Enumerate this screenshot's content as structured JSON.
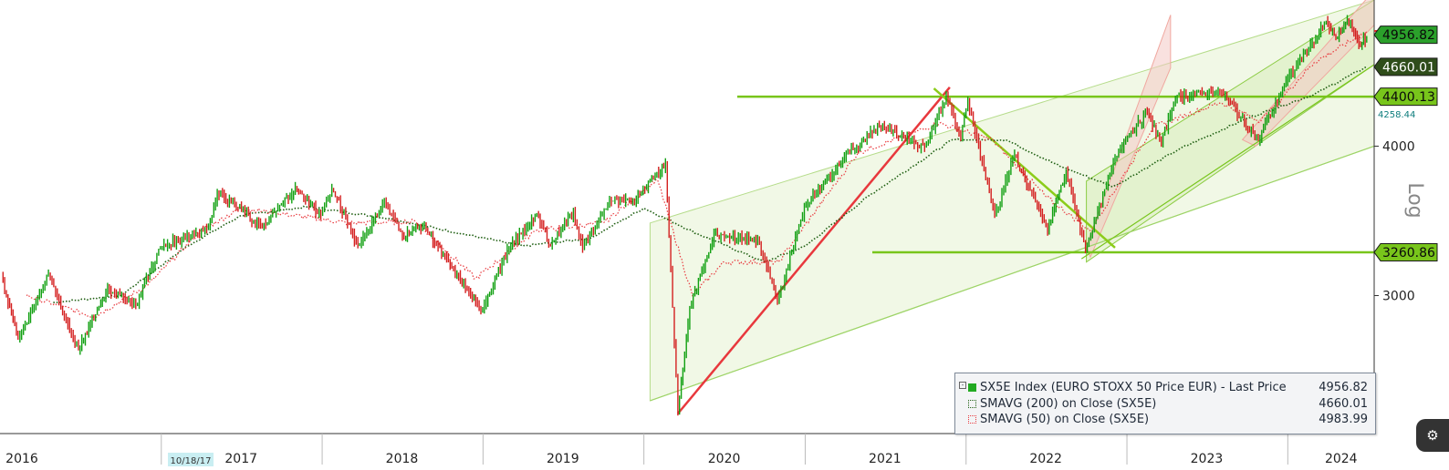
{
  "chart_data": {
    "type": "line",
    "title": "SX5E Index (EURO STOXX 50 Price EUR)",
    "y_scale": "log",
    "y_axis_label": "Log",
    "ylim": [
      2300,
      5300
    ],
    "x_range": [
      "2016-01-01",
      "2024-07-15"
    ],
    "x_tick_labels": [
      "2016",
      "2017",
      "2018",
      "2019",
      "2020",
      "2021",
      "2022",
      "2023",
      "2024"
    ],
    "y_tick_labels": [
      "3000",
      "4000"
    ],
    "date_marker": "10/18/17",
    "series": [
      {
        "name": "SX5E Index (EURO STOXX 50 Price EUR) - Last Price",
        "color": "#00a000",
        "last_value": "4956.82",
        "points": [
          [
            "2016-01-04",
            3120
          ],
          [
            "2016-02-11",
            2760
          ],
          [
            "2016-04-20",
            3120
          ],
          [
            "2016-06-27",
            2700
          ],
          [
            "2016-09-01",
            3040
          ],
          [
            "2016-11-04",
            2950
          ],
          [
            "2016-12-30",
            3290
          ],
          [
            "2017-04-18",
            3420
          ],
          [
            "2017-05-08",
            3660
          ],
          [
            "2017-08-18",
            3420
          ],
          [
            "2017-11-01",
            3690
          ],
          [
            "2017-12-29",
            3500
          ],
          [
            "2018-01-23",
            3690
          ],
          [
            "2018-03-23",
            3300
          ],
          [
            "2018-05-22",
            3590
          ],
          [
            "2018-07-02",
            3370
          ],
          [
            "2018-08-17",
            3440
          ],
          [
            "2018-10-26",
            3150
          ],
          [
            "2018-12-27",
            2910
          ],
          [
            "2019-03-01",
            3290
          ],
          [
            "2019-05-03",
            3500
          ],
          [
            "2019-06-03",
            3310
          ],
          [
            "2019-07-25",
            3530
          ],
          [
            "2019-08-15",
            3280
          ],
          [
            "2019-10-15",
            3600
          ],
          [
            "2019-12-03",
            3590
          ],
          [
            "2020-02-19",
            3865
          ],
          [
            "2020-03-18",
            2390
          ],
          [
            "2020-04-14",
            2930
          ],
          [
            "2020-06-08",
            3380
          ],
          [
            "2020-09-15",
            3340
          ],
          [
            "2020-10-30",
            2960
          ],
          [
            "2020-12-30",
            3560
          ],
          [
            "2021-03-31",
            3920
          ],
          [
            "2021-06-18",
            4160
          ],
          [
            "2021-09-29",
            3990
          ],
          [
            "2021-11-17",
            4400
          ],
          [
            "2021-12-20",
            4060
          ],
          [
            "2022-01-05",
            4370
          ],
          [
            "2022-03-07",
            3500
          ],
          [
            "2022-04-21",
            3930
          ],
          [
            "2022-07-05",
            3400
          ],
          [
            "2022-08-16",
            3810
          ],
          [
            "2022-09-29",
            3280
          ],
          [
            "2022-12-13",
            3980
          ],
          [
            "2023-02-16",
            4270
          ],
          [
            "2023-03-20",
            4030
          ],
          [
            "2023-04-21",
            4390
          ],
          [
            "2023-07-31",
            4460
          ],
          [
            "2023-10-26",
            4050
          ],
          [
            "2023-12-28",
            4530
          ],
          [
            "2024-03-28",
            5080
          ],
          [
            "2024-04-19",
            4920
          ],
          [
            "2024-05-15",
            5100
          ],
          [
            "2024-06-14",
            4860
          ],
          [
            "2024-06-28",
            4930
          ]
        ]
      },
      {
        "name": "SMAVG (200) on Close (SX5E)",
        "color": "#1f5f12",
        "last_value": "4660.01",
        "points": [
          [
            "2016-05-01",
            2960
          ],
          [
            "2016-10-01",
            3000
          ],
          [
            "2017-03-01",
            3300
          ],
          [
            "2017-07-01",
            3500
          ],
          [
            "2017-12-01",
            3560
          ],
          [
            "2018-06-01",
            3480
          ],
          [
            "2018-12-01",
            3370
          ],
          [
            "2019-04-01",
            3300
          ],
          [
            "2019-09-01",
            3350
          ],
          [
            "2020-01-01",
            3550
          ],
          [
            "2020-05-01",
            3380
          ],
          [
            "2020-10-01",
            3200
          ],
          [
            "2021-01-01",
            3300
          ],
          [
            "2021-06-01",
            3650
          ],
          [
            "2021-12-01",
            4050
          ],
          [
            "2022-04-01",
            4050
          ],
          [
            "2022-08-01",
            3850
          ],
          [
            "2022-12-01",
            3700
          ],
          [
            "2023-05-01",
            3980
          ],
          [
            "2023-10-01",
            4220
          ],
          [
            "2024-03-01",
            4420
          ],
          [
            "2024-06-28",
            4660
          ]
        ]
      },
      {
        "name": "SMAVG (50) on Close (SX5E)",
        "color": "#e8383d",
        "last_value": "4983.99",
        "points": [
          [
            "2016-03-01",
            3000
          ],
          [
            "2016-08-01",
            2880
          ],
          [
            "2016-12-01",
            3060
          ],
          [
            "2017-04-01",
            3400
          ],
          [
            "2017-07-01",
            3550
          ],
          [
            "2018-03-01",
            3450
          ],
          [
            "2018-08-01",
            3460
          ],
          [
            "2018-12-15",
            3100
          ],
          [
            "2019-05-01",
            3400
          ],
          [
            "2019-10-01",
            3450
          ],
          [
            "2020-02-01",
            3750
          ],
          [
            "2020-04-20",
            3000
          ],
          [
            "2020-07-01",
            3200
          ],
          [
            "2020-11-01",
            3200
          ],
          [
            "2021-05-01",
            3950
          ],
          [
            "2021-11-01",
            4180
          ],
          [
            "2022-03-01",
            4050
          ],
          [
            "2022-07-01",
            3630
          ],
          [
            "2022-10-10",
            3400
          ],
          [
            "2023-03-01",
            4150
          ],
          [
            "2023-08-01",
            4350
          ],
          [
            "2023-11-01",
            4200
          ],
          [
            "2024-03-01",
            4700
          ],
          [
            "2024-06-28",
            4984
          ]
        ]
      }
    ],
    "levels": [
      {
        "label": "4956.82",
        "value": 4956.82,
        "color": "#2ba02b"
      },
      {
        "label": "4660.01",
        "value": 4660.01,
        "color": "#2f4d1a"
      },
      {
        "label": "4400.13",
        "value": 4400.13,
        "color": "#78c51b"
      },
      {
        "label": "4258.44",
        "value": 4258.44,
        "color": "#0c7c7c"
      },
      {
        "label": "3260.86",
        "value": 3260.86,
        "color": "#78c51b"
      }
    ],
    "legend": {
      "placement": "bottom-right",
      "rows": [
        {
          "label": "SX5E Index (EURO STOXX 50 Price EUR) - Last Price",
          "value": "4956.82",
          "swatch": "#22aa22"
        },
        {
          "label": "SMAVG (200)  on Close (SX5E)",
          "value": "4660.01",
          "swatch": "#1f5f12"
        },
        {
          "label": "SMAVG (50)  on Close (SX5E)",
          "value": "4983.99",
          "swatch": "#e8383d"
        }
      ]
    }
  }
}
